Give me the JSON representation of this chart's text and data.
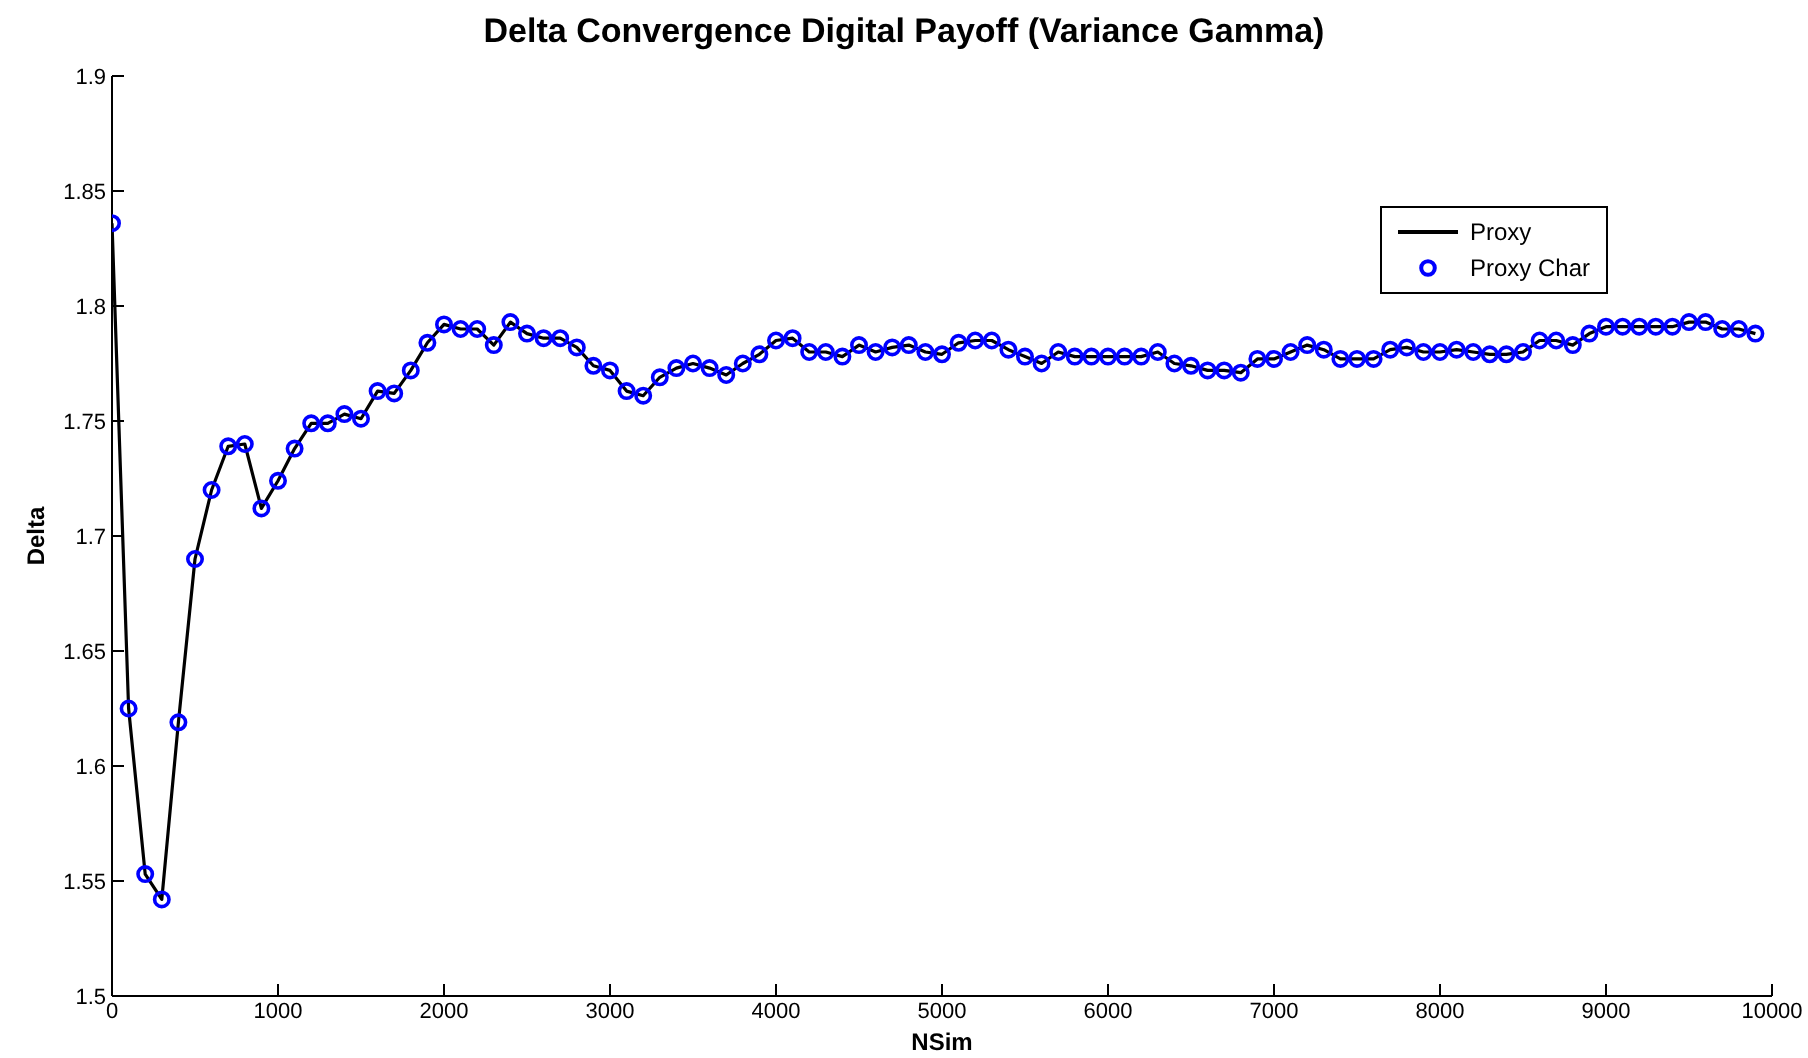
{
  "chart_data": {
    "type": "line",
    "title": "Delta Convergence Digital Payoff (Variance Gamma)",
    "xlabel": "NSim",
    "ylabel": "Delta",
    "x": [
      0,
      100,
      200,
      300,
      400,
      500,
      600,
      700,
      800,
      900,
      1000,
      1100,
      1200,
      1300,
      1400,
      1500,
      1600,
      1700,
      1800,
      1900,
      2000,
      2100,
      2200,
      2300,
      2400,
      2500,
      2600,
      2700,
      2800,
      2900,
      3000,
      3100,
      3200,
      3300,
      3400,
      3500,
      3600,
      3700,
      3800,
      3900,
      4000,
      4100,
      4200,
      4300,
      4400,
      4500,
      4600,
      4700,
      4800,
      4900,
      5000,
      5100,
      5200,
      5300,
      5400,
      5500,
      5600,
      5700,
      5800,
      5900,
      6000,
      6100,
      6200,
      6300,
      6400,
      6500,
      6600,
      6700,
      6800,
      6900,
      7000,
      7100,
      7200,
      7300,
      7400,
      7500,
      7600,
      7700,
      7800,
      7900,
      8000,
      8100,
      8200,
      8300,
      8400,
      8500,
      8600,
      8700,
      8800,
      8900,
      9000,
      9100,
      9200,
      9300,
      9400,
      9500,
      9600,
      9700,
      9800,
      9900
    ],
    "series": [
      {
        "name": "Proxy",
        "color": "#000000",
        "marker": "none",
        "values": [
          1.836,
          1.625,
          1.553,
          1.542,
          1.619,
          1.69,
          1.72,
          1.739,
          1.74,
          1.712,
          1.724,
          1.738,
          1.749,
          1.749,
          1.753,
          1.751,
          1.763,
          1.762,
          1.772,
          1.784,
          1.792,
          1.79,
          1.79,
          1.783,
          1.793,
          1.788,
          1.786,
          1.786,
          1.782,
          1.774,
          1.772,
          1.763,
          1.761,
          1.769,
          1.773,
          1.775,
          1.773,
          1.77,
          1.775,
          1.779,
          1.785,
          1.786,
          1.78,
          1.78,
          1.778,
          1.783,
          1.78,
          1.782,
          1.783,
          1.78,
          1.779,
          1.784,
          1.785,
          1.785,
          1.781,
          1.778,
          1.775,
          1.78,
          1.778,
          1.778,
          1.778,
          1.778,
          1.778,
          1.78,
          1.775,
          1.774,
          1.772,
          1.772,
          1.771,
          1.777,
          1.777,
          1.78,
          1.783,
          1.781,
          1.777,
          1.777,
          1.777,
          1.781,
          1.782,
          1.78,
          1.78,
          1.781,
          1.78,
          1.779,
          1.779,
          1.78,
          1.785,
          1.785,
          1.783,
          1.788,
          1.791,
          1.791,
          1.791,
          1.791,
          1.791,
          1.793,
          1.793,
          1.79,
          1.79,
          1.788
        ]
      },
      {
        "name": "Proxy Char",
        "type": "scatter",
        "color": "#0000ff",
        "marker": "circle",
        "values": [
          1.836,
          1.625,
          1.553,
          1.542,
          1.619,
          1.69,
          1.72,
          1.739,
          1.74,
          1.712,
          1.724,
          1.738,
          1.749,
          1.749,
          1.753,
          1.751,
          1.763,
          1.762,
          1.772,
          1.784,
          1.792,
          1.79,
          1.79,
          1.783,
          1.793,
          1.788,
          1.786,
          1.786,
          1.782,
          1.774,
          1.772,
          1.763,
          1.761,
          1.769,
          1.773,
          1.775,
          1.773,
          1.77,
          1.775,
          1.779,
          1.785,
          1.786,
          1.78,
          1.78,
          1.778,
          1.783,
          1.78,
          1.782,
          1.783,
          1.78,
          1.779,
          1.784,
          1.785,
          1.785,
          1.781,
          1.778,
          1.775,
          1.78,
          1.778,
          1.778,
          1.778,
          1.778,
          1.778,
          1.78,
          1.775,
          1.774,
          1.772,
          1.772,
          1.771,
          1.777,
          1.777,
          1.78,
          1.783,
          1.781,
          1.777,
          1.777,
          1.777,
          1.781,
          1.782,
          1.78,
          1.78,
          1.781,
          1.78,
          1.779,
          1.779,
          1.78,
          1.785,
          1.785,
          1.783,
          1.788,
          1.791,
          1.791,
          1.791,
          1.791,
          1.791,
          1.793,
          1.793,
          1.79,
          1.79,
          1.788
        ]
      }
    ],
    "xlim": [
      0,
      10000
    ],
    "xticks": [
      0,
      1000,
      2000,
      3000,
      4000,
      5000,
      6000,
      7000,
      8000,
      9000,
      10000
    ],
    "ylim": [
      1.5,
      1.9
    ],
    "yticks": [
      1.5,
      1.55,
      1.6,
      1.65,
      1.7,
      1.75,
      1.8,
      1.85,
      1.9
    ],
    "grid": false,
    "legend": "top right"
  }
}
